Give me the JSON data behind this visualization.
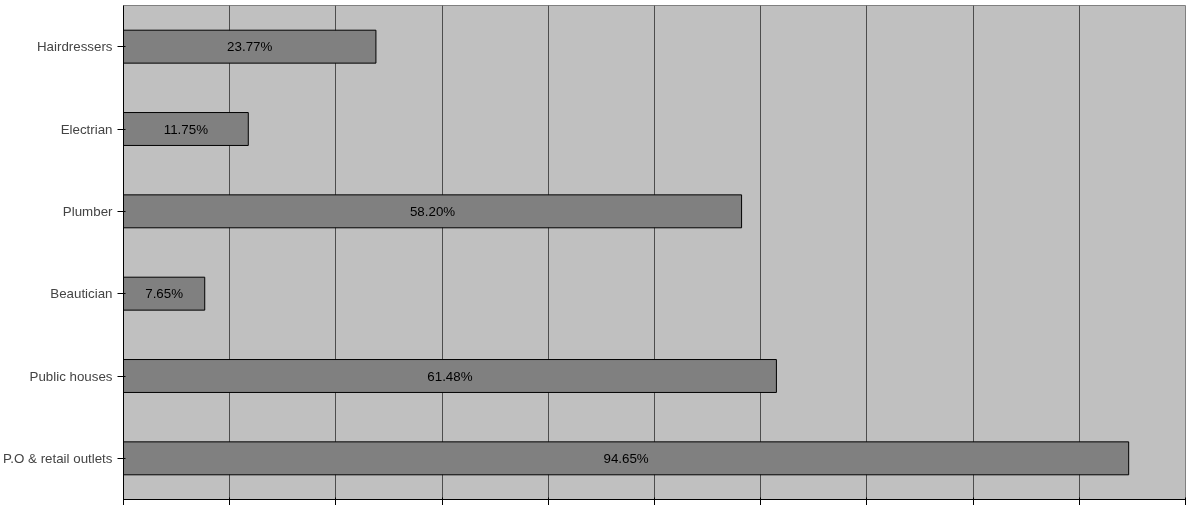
{
  "chart_data": {
    "type": "bar",
    "orientation": "horizontal",
    "categories": [
      "Hairdressers",
      "Electrian",
      "Plumber",
      "Beautician",
      "Public houses",
      "P.O & retail outlets"
    ],
    "values": [
      23.77,
      11.75,
      58.2,
      7.65,
      61.48,
      94.65
    ],
    "value_labels": [
      "23.77%",
      "11.75%",
      "58.20%",
      "7.65%",
      "61.48%",
      "94.65%"
    ],
    "color": "#808080",
    "xlim": [
      0,
      100
    ],
    "xticks": [
      {
        "value": 0,
        "label": null
      },
      {
        "value": 10,
        "label": null
      },
      {
        "value": 20,
        "label": null
      },
      {
        "value": 30,
        "label": null
      },
      {
        "value": 40,
        "label": null
      },
      {
        "value": 50,
        "label": null
      },
      {
        "value": 60,
        "label": null
      },
      {
        "value": 70,
        "label": null
      },
      {
        "value": 80,
        "label": null
      },
      {
        "value": 90,
        "label": null
      },
      {
        "value": 100,
        "label": null
      }
    ],
    "grid": "x",
    "tick_labels": "y"
  }
}
